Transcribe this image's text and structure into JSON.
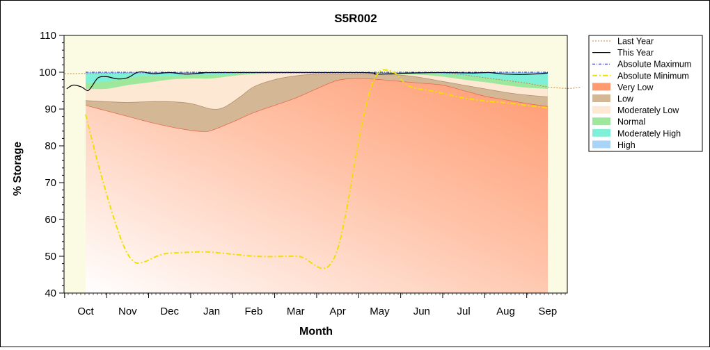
{
  "chart_data": {
    "type": "area",
    "title": "S5R002",
    "xlabel": "Month",
    "ylabel": "% Storage",
    "ylim": [
      40,
      110
    ],
    "yticks": [
      40,
      50,
      60,
      70,
      80,
      90,
      100,
      110
    ],
    "categories": [
      "Oct",
      "Nov",
      "Dec",
      "Jan",
      "Feb",
      "Mar",
      "Apr",
      "May",
      "Jun",
      "Jul",
      "Aug",
      "Sep"
    ],
    "grid": false,
    "legend_position": "right",
    "series": [
      {
        "name": "Last Year",
        "kind": "line",
        "color": "#c8823c",
        "points": [
          [
            -0.5,
            99.6
          ],
          [
            0.5,
            99.7
          ],
          [
            1.5,
            99.8
          ],
          [
            3,
            99.8
          ],
          [
            5,
            99.8
          ],
          [
            7,
            99.8
          ],
          [
            8.5,
            99.8
          ],
          [
            9.5,
            98.5
          ],
          [
            10.5,
            97.0
          ],
          [
            11.0,
            96.0
          ],
          [
            11.5,
            95.6
          ],
          [
            11.8,
            96.0
          ]
        ]
      },
      {
        "name": "This Year",
        "kind": "line",
        "color": "#000000",
        "points": [
          [
            -0.45,
            95.5
          ],
          [
            -0.3,
            96.5
          ],
          [
            -0.1,
            96.0
          ],
          [
            0.05,
            95.0
          ],
          [
            0.15,
            96.2
          ],
          [
            0.3,
            98.5
          ],
          [
            0.5,
            98.8
          ],
          [
            0.75,
            98.2
          ],
          [
            1.0,
            98.5
          ],
          [
            1.2,
            99.8
          ],
          [
            1.35,
            100.1
          ],
          [
            1.6,
            99.6
          ],
          [
            2.0,
            99.9
          ],
          [
            2.4,
            99.5
          ],
          [
            2.8,
            99.8
          ],
          [
            3.0,
            99.9
          ],
          [
            6.5,
            99.9
          ],
          [
            6.9,
            99.5
          ],
          [
            7.3,
            99.6
          ],
          [
            7.8,
            99.8
          ],
          [
            8.5,
            99.9
          ],
          [
            9.2,
            99.8
          ],
          [
            9.6,
            99.9
          ],
          [
            10.0,
            99.5
          ],
          [
            10.4,
            99.4
          ],
          [
            10.8,
            99.6
          ],
          [
            11.0,
            99.8
          ]
        ]
      },
      {
        "name": "Absolute Maximum",
        "kind": "line",
        "color": "#2020c0",
        "points": [
          [
            0.0,
            100
          ],
          [
            11.0,
            100
          ]
        ]
      },
      {
        "name": "Absolute Minimum",
        "kind": "line",
        "color": "#f0e000",
        "points": [
          [
            0.0,
            88.5
          ],
          [
            0.3,
            75
          ],
          [
            0.6,
            63
          ],
          [
            0.9,
            53
          ],
          [
            1.15,
            48.5
          ],
          [
            1.4,
            48.5
          ],
          [
            1.65,
            49.8
          ],
          [
            1.9,
            50.7
          ],
          [
            2.3,
            51
          ],
          [
            2.8,
            51.2
          ],
          [
            3.3,
            50.8
          ],
          [
            3.8,
            50.2
          ],
          [
            4.3,
            49.9
          ],
          [
            5.0,
            50
          ],
          [
            5.2,
            49.5
          ],
          [
            5.4,
            48
          ],
          [
            5.6,
            46.8
          ],
          [
            5.8,
            47.5
          ],
          [
            6.0,
            52
          ],
          [
            6.2,
            62
          ],
          [
            6.4,
            75
          ],
          [
            6.6,
            87
          ],
          [
            6.8,
            96
          ],
          [
            7.0,
            100.2
          ],
          [
            7.2,
            100.5
          ],
          [
            7.4,
            99.5
          ],
          [
            7.6,
            97
          ],
          [
            7.8,
            95.8
          ],
          [
            8.2,
            95
          ],
          [
            8.6,
            94
          ],
          [
            9.0,
            93
          ],
          [
            9.5,
            92.2
          ],
          [
            10.0,
            91.7
          ],
          [
            10.5,
            91.0
          ],
          [
            11.0,
            90.3
          ]
        ]
      },
      {
        "name": "Very Low",
        "kind": "band",
        "color": "#ff9a70",
        "upper": [
          [
            0.0,
            91.0
          ],
          [
            0.5,
            89.5
          ],
          [
            1.0,
            88.0
          ],
          [
            1.5,
            86.5
          ],
          [
            2.0,
            85.2
          ],
          [
            2.5,
            84.2
          ],
          [
            2.8,
            83.9
          ],
          [
            3.0,
            84.2
          ],
          [
            3.5,
            86.5
          ],
          [
            4.0,
            89.0
          ],
          [
            4.5,
            91.0
          ],
          [
            5.0,
            93.0
          ],
          [
            5.5,
            95.5
          ],
          [
            6.0,
            97.8
          ],
          [
            6.5,
            98.3
          ],
          [
            7.0,
            98.0
          ],
          [
            7.5,
            97.5
          ],
          [
            8.0,
            97.0
          ],
          [
            8.5,
            96.5
          ],
          [
            9.0,
            95.0
          ],
          [
            9.5,
            93.5
          ],
          [
            10.0,
            92.5
          ],
          [
            10.5,
            91.5
          ],
          [
            11.0,
            90.7
          ]
        ]
      },
      {
        "name": "Low",
        "kind": "band",
        "color": "#d4b896",
        "upper": [
          [
            0.0,
            92.3
          ],
          [
            0.5,
            92.0
          ],
          [
            1.0,
            91.8
          ],
          [
            1.5,
            92.0
          ],
          [
            2.0,
            92.0
          ],
          [
            2.5,
            91.5
          ],
          [
            3.0,
            90.0
          ],
          [
            3.3,
            90.5
          ],
          [
            3.7,
            93.5
          ],
          [
            4.0,
            96.0
          ],
          [
            4.5,
            98.0
          ],
          [
            5.0,
            99.0
          ],
          [
            5.5,
            99.5
          ],
          [
            6.0,
            99.5
          ],
          [
            6.5,
            99.5
          ],
          [
            7.0,
            99.5
          ],
          [
            7.5,
            99.2
          ],
          [
            8.0,
            98.5
          ],
          [
            8.5,
            97.5
          ],
          [
            9.0,
            96.5
          ],
          [
            9.5,
            95.5
          ],
          [
            10.0,
            94.5
          ],
          [
            10.5,
            93.8
          ],
          [
            11.0,
            93.3
          ]
        ]
      },
      {
        "name": "Moderately Low",
        "kind": "band",
        "color": "#fde8d4",
        "upper": [
          [
            0.0,
            95.5
          ],
          [
            0.5,
            95.5
          ],
          [
            1.0,
            96.5
          ],
          [
            1.5,
            97.2
          ],
          [
            2.0,
            98.0
          ],
          [
            2.5,
            98.3
          ],
          [
            3.0,
            98.3
          ],
          [
            3.5,
            99.0
          ],
          [
            4.0,
            99.5
          ],
          [
            5.0,
            99.7
          ],
          [
            6.0,
            99.8
          ],
          [
            7.0,
            99.8
          ],
          [
            7.5,
            99.5
          ],
          [
            8.0,
            99.3
          ],
          [
            8.5,
            98.8
          ],
          [
            9.0,
            98.0
          ],
          [
            9.5,
            97.3
          ],
          [
            10.0,
            96.5
          ],
          [
            10.5,
            95.8
          ],
          [
            11.0,
            95.5
          ]
        ]
      },
      {
        "name": "Normal",
        "kind": "band",
        "color": "#9ee89e",
        "upper": [
          [
            0.0,
            97.0
          ],
          [
            0.5,
            97.5
          ],
          [
            1.0,
            98.5
          ],
          [
            1.5,
            99.0
          ],
          [
            2.0,
            99.0
          ],
          [
            2.5,
            99.2
          ],
          [
            3.0,
            99.3
          ],
          [
            3.5,
            99.5
          ],
          [
            4.0,
            99.8
          ],
          [
            7.0,
            99.9
          ],
          [
            7.5,
            99.8
          ],
          [
            8.0,
            99.7
          ],
          [
            8.5,
            99.5
          ],
          [
            9.0,
            99.0
          ],
          [
            9.5,
            98.5
          ],
          [
            10.0,
            97.8
          ],
          [
            10.5,
            97.0
          ],
          [
            11.0,
            96.5
          ]
        ]
      },
      {
        "name": "Moderately High",
        "kind": "band",
        "color": "#7ef0d8",
        "upper": [
          [
            0.0,
            99.6
          ],
          [
            1.0,
            99.7
          ],
          [
            2.0,
            99.8
          ],
          [
            3.0,
            99.8
          ],
          [
            7.0,
            99.9
          ],
          [
            8.0,
            99.9
          ],
          [
            9.0,
            99.8
          ],
          [
            10.0,
            99.7
          ],
          [
            11.0,
            99.7
          ]
        ]
      },
      {
        "name": "High",
        "kind": "band",
        "color": "#a8d4f8",
        "upper": [
          [
            0.0,
            100
          ],
          [
            11.0,
            100
          ]
        ]
      }
    ]
  }
}
